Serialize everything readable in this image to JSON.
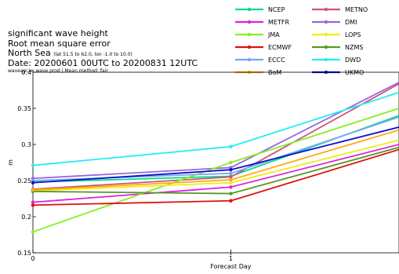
{
  "header": {
    "line1": "significant wave height",
    "line2": "Root mean square error",
    "line3_main": "North Sea",
    "line3_coords": "(lat 51.5 to 62.0, lon -1.0 to 10.0)",
    "line4": "Date: 20200601 00UTC to 20200831 12UTC",
    "line5": "waveapi iw wave prod | Mean method: fair"
  },
  "chart_data": {
    "type": "line",
    "title": "significant wave height",
    "xlabel": "Forecast Day",
    "ylabel": "m",
    "x": [
      0,
      1,
      1.85
    ],
    "xticks": [
      0,
      1
    ],
    "xlim": [
      0,
      1.85
    ],
    "ylim": [
      0.15,
      0.4
    ],
    "yticks": [
      0.15,
      0.2,
      0.25,
      0.3,
      0.35,
      0.4
    ],
    "ytick_labels": [
      "0.15",
      "0.2",
      "0.25",
      "0.3",
      "0.35",
      "0.4"
    ],
    "grid": false,
    "legend_position": "top-right",
    "series": [
      {
        "name": "NCEP",
        "color": "#00dd88",
        "values": [
          0.248,
          0.256,
          0.34
        ]
      },
      {
        "name": "METNO",
        "color": "#cc5577",
        "values": [
          0.238,
          0.255,
          0.384
        ]
      },
      {
        "name": "METFR",
        "color": "#dd22dd",
        "values": [
          0.22,
          0.241,
          0.3
        ]
      },
      {
        "name": "DMI",
        "color": "#9966dd",
        "values": [
          0.253,
          0.268,
          0.386
        ]
      },
      {
        "name": "JMA",
        "color": "#88ee22",
        "values": [
          0.179,
          0.275,
          0.35
        ]
      },
      {
        "name": "LOPS",
        "color": "#eeee11",
        "values": [
          0.236,
          0.247,
          0.306
        ]
      },
      {
        "name": "ECMWF",
        "color": "#dd1111",
        "values": [
          0.216,
          0.222,
          0.293
        ]
      },
      {
        "name": "NZMS",
        "color": "#559922",
        "values": [
          0.235,
          0.232,
          0.296
        ]
      },
      {
        "name": "ECCC",
        "color": "#77aaee",
        "values": [
          0.25,
          0.26,
          0.338
        ]
      },
      {
        "name": "DWD",
        "color": "#22eeee",
        "values": [
          0.271,
          0.297,
          0.372
        ]
      },
      {
        "name": "BoM",
        "color": "#ffaa11",
        "values": [
          0.237,
          0.251,
          0.32
        ]
      },
      {
        "name": "UKMO",
        "color": "#1111cc",
        "values": [
          0.247,
          0.265,
          0.324
        ]
      }
    ]
  }
}
